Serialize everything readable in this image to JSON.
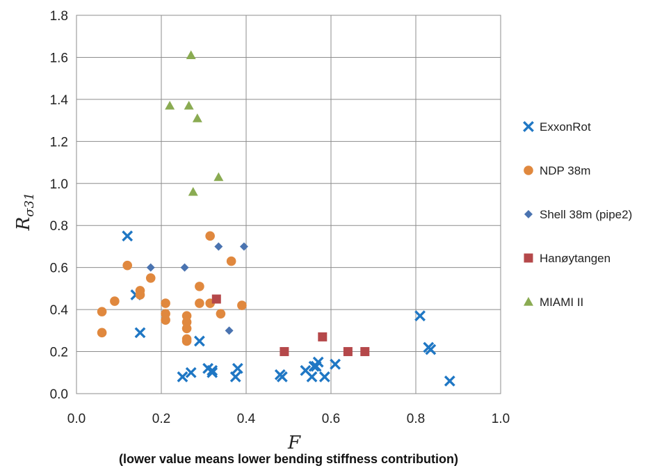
{
  "chart_data": {
    "type": "scatter",
    "xlabel": "F",
    "ylabel_base": "R",
    "ylabel_sub": "σ31",
    "note": "(lower value means lower bending stiffness contribution)",
    "xlim": [
      0.0,
      1.0
    ],
    "ylim": [
      0.0,
      1.8
    ],
    "x_ticks": [
      "0.0",
      "0.2",
      "0.4",
      "0.6",
      "0.8",
      "1.0"
    ],
    "y_ticks": [
      "0.0",
      "0.2",
      "0.4",
      "0.6",
      "0.8",
      "1.0",
      "1.2",
      "1.4",
      "1.6",
      "1.8"
    ],
    "grid": true,
    "legend_position": "right",
    "series": [
      {
        "name": "ExxonRot",
        "marker": "x",
        "color": "#1f77c4",
        "points": [
          [
            0.12,
            0.75
          ],
          [
            0.14,
            0.47
          ],
          [
            0.15,
            0.29
          ],
          [
            0.25,
            0.08
          ],
          [
            0.27,
            0.1
          ],
          [
            0.29,
            0.25
          ],
          [
            0.31,
            0.12
          ],
          [
            0.32,
            0.11
          ],
          [
            0.32,
            0.1
          ],
          [
            0.375,
            0.08
          ],
          [
            0.38,
            0.12
          ],
          [
            0.48,
            0.09
          ],
          [
            0.485,
            0.08
          ],
          [
            0.54,
            0.11
          ],
          [
            0.555,
            0.08
          ],
          [
            0.56,
            0.13
          ],
          [
            0.565,
            0.13
          ],
          [
            0.57,
            0.15
          ],
          [
            0.585,
            0.08
          ],
          [
            0.61,
            0.14
          ],
          [
            0.81,
            0.37
          ],
          [
            0.83,
            0.22
          ],
          [
            0.835,
            0.21
          ],
          [
            0.88,
            0.06
          ]
        ]
      },
      {
        "name": "NDP 38m",
        "marker": "circle",
        "color": "#e0883e",
        "points": [
          [
            0.06,
            0.39
          ],
          [
            0.06,
            0.29
          ],
          [
            0.09,
            0.44
          ],
          [
            0.12,
            0.61
          ],
          [
            0.15,
            0.49
          ],
          [
            0.15,
            0.47
          ],
          [
            0.175,
            0.55
          ],
          [
            0.21,
            0.43
          ],
          [
            0.21,
            0.38
          ],
          [
            0.21,
            0.35
          ],
          [
            0.26,
            0.37
          ],
          [
            0.26,
            0.34
          ],
          [
            0.26,
            0.31
          ],
          [
            0.26,
            0.26
          ],
          [
            0.26,
            0.25
          ],
          [
            0.29,
            0.51
          ],
          [
            0.29,
            0.43
          ],
          [
            0.315,
            0.75
          ],
          [
            0.315,
            0.43
          ],
          [
            0.34,
            0.38
          ],
          [
            0.365,
            0.63
          ],
          [
            0.39,
            0.42
          ]
        ]
      },
      {
        "name": "Shell 38m (pipe2)",
        "marker": "diamond",
        "color": "#4a73b0",
        "points": [
          [
            0.175,
            0.6
          ],
          [
            0.255,
            0.6
          ],
          [
            0.335,
            0.7
          ],
          [
            0.36,
            0.3
          ],
          [
            0.395,
            0.7
          ]
        ]
      },
      {
        "name": "Hanøytangen",
        "marker": "square",
        "color": "#b5484a",
        "points": [
          [
            0.33,
            0.45
          ],
          [
            0.49,
            0.2
          ],
          [
            0.58,
            0.27
          ],
          [
            0.64,
            0.2
          ],
          [
            0.68,
            0.2
          ]
        ]
      },
      {
        "name": "MIAMI II",
        "marker": "triangle",
        "color": "#8aab52",
        "points": [
          [
            0.22,
            1.37
          ],
          [
            0.265,
            1.37
          ],
          [
            0.27,
            1.61
          ],
          [
            0.275,
            0.96
          ],
          [
            0.285,
            1.31
          ],
          [
            0.335,
            1.03
          ]
        ]
      }
    ]
  }
}
